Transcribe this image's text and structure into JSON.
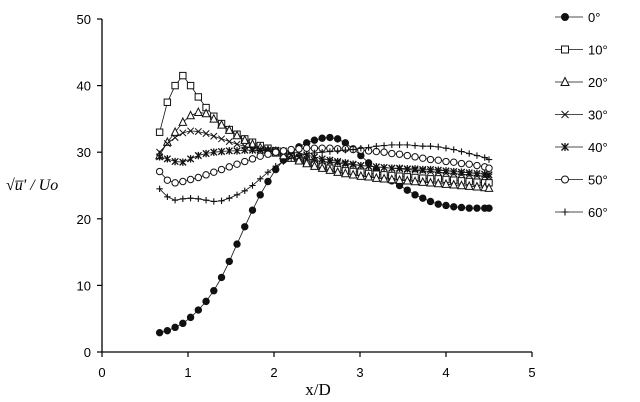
{
  "chart_data": {
    "type": "line",
    "title": "",
    "xlabel": "x/D",
    "ylabel": "√u̅' / Uo",
    "xlim": [
      0,
      5
    ],
    "ylim": [
      0,
      50
    ],
    "xticks": [
      0,
      1,
      2,
      3,
      4,
      5
    ],
    "yticks": [
      0,
      10,
      20,
      30,
      40,
      50
    ],
    "xtick_labels": [
      "0",
      "1",
      "2",
      "3",
      "4",
      "5"
    ],
    "ytick_labels": [
      "0",
      "10",
      "20",
      "30",
      "40",
      "50"
    ],
    "grid": false,
    "legend_position": "right",
    "x": [
      0.67,
      0.76,
      0.85,
      0.94,
      1.03,
      1.12,
      1.21,
      1.3,
      1.39,
      1.48,
      1.57,
      1.66,
      1.75,
      1.84,
      1.93,
      2.02,
      2.11,
      2.2,
      2.29,
      2.38,
      2.47,
      2.56,
      2.65,
      2.74,
      2.83,
      2.92,
      3.01,
      3.1,
      3.19,
      3.28,
      3.37,
      3.46,
      3.55,
      3.64,
      3.73,
      3.82,
      3.91,
      4.0,
      4.09,
      4.18,
      4.27,
      4.36,
      4.45,
      4.5
    ],
    "series": [
      {
        "name": "0°",
        "marker": "filled-circle",
        "values": [
          2.9,
          3.2,
          3.7,
          4.3,
          5.2,
          6.3,
          7.6,
          9.2,
          11.2,
          13.6,
          16.2,
          18.8,
          21.3,
          23.6,
          25.6,
          27.4,
          28.8,
          29.9,
          30.8,
          31.4,
          31.8,
          32.1,
          32.2,
          32.0,
          31.4,
          30.5,
          29.5,
          28.4,
          27.4,
          26.5,
          25.7,
          25.0,
          24.3,
          23.6,
          23.1,
          22.6,
          22.2,
          22.0,
          21.8,
          21.7,
          21.6,
          21.6,
          21.6,
          21.6
        ]
      },
      {
        "name": "10°",
        "marker": "square",
        "values": [
          33.0,
          37.5,
          40.0,
          41.5,
          40.0,
          38.3,
          36.7,
          35.4,
          34.3,
          33.4,
          32.7,
          32.0,
          31.5,
          31.0,
          30.6,
          30.2,
          29.7,
          29.3,
          28.9,
          28.5,
          28.2,
          27.9,
          27.6,
          27.4,
          27.2,
          27.1,
          27.0,
          26.8,
          26.7,
          26.6,
          26.5,
          26.4,
          26.3,
          26.2,
          26.1,
          26.0,
          26.0,
          25.9,
          25.8,
          25.7,
          25.6,
          25.5,
          25.4,
          25.4
        ]
      },
      {
        "name": "20°",
        "marker": "triangle",
        "values": [
          29.5,
          31.5,
          33.0,
          34.5,
          35.5,
          36.0,
          35.8,
          35.0,
          34.1,
          33.3,
          32.5,
          31.8,
          31.2,
          30.7,
          30.3,
          29.9,
          29.5,
          29.1,
          28.7,
          28.3,
          27.9,
          27.6,
          27.3,
          27.0,
          26.8,
          26.6,
          26.4,
          26.3,
          26.1,
          26.0,
          25.9,
          25.8,
          25.7,
          25.6,
          25.5,
          25.4,
          25.3,
          25.2,
          25.1,
          25.0,
          24.9,
          24.8,
          24.7,
          24.6
        ]
      },
      {
        "name": "30°",
        "marker": "x",
        "values": [
          30.0,
          31.3,
          32.2,
          32.9,
          33.2,
          33.1,
          32.8,
          32.4,
          32.0,
          31.6,
          31.2,
          30.9,
          30.6,
          30.4,
          30.2,
          30.0,
          29.8,
          29.6,
          29.3,
          29.0,
          28.8,
          28.6,
          28.5,
          28.4,
          28.2,
          28.1,
          28.0,
          27.9,
          27.8,
          27.7,
          27.6,
          27.5,
          27.4,
          27.3,
          27.2,
          27.1,
          27.0,
          26.9,
          26.8,
          26.7,
          26.6,
          26.5,
          26.4,
          26.3
        ]
      },
      {
        "name": "40°",
        "marker": "asterisk",
        "values": [
          29.3,
          29.0,
          28.6,
          28.5,
          29.0,
          29.5,
          29.8,
          30.0,
          30.1,
          30.2,
          30.2,
          30.3,
          30.3,
          30.3,
          30.3,
          30.3,
          30.2,
          30.1,
          29.9,
          29.6,
          29.3,
          29.0,
          28.8,
          28.6,
          28.4,
          28.2,
          28.0,
          27.9,
          27.8,
          27.7,
          27.6,
          27.6,
          27.5,
          27.5,
          27.4,
          27.4,
          27.3,
          27.2,
          27.1,
          27.0,
          26.9,
          26.8,
          26.7,
          26.6
        ]
      },
      {
        "name": "50°",
        "marker": "circle",
        "values": [
          27.1,
          25.8,
          25.4,
          25.6,
          25.9,
          26.2,
          26.6,
          27.0,
          27.4,
          27.8,
          28.2,
          28.6,
          29.0,
          29.4,
          29.7,
          30.0,
          30.2,
          30.4,
          30.5,
          30.6,
          30.6,
          30.6,
          30.6,
          30.5,
          30.5,
          30.4,
          30.3,
          30.2,
          30.1,
          30.0,
          29.8,
          29.7,
          29.5,
          29.3,
          29.1,
          28.9,
          28.8,
          28.6,
          28.5,
          28.3,
          28.2,
          28.0,
          27.8,
          27.6
        ]
      },
      {
        "name": "60°",
        "marker": "plus",
        "values": [
          24.5,
          23.3,
          22.8,
          23.0,
          23.1,
          23.0,
          22.8,
          22.6,
          22.7,
          23.1,
          23.6,
          24.2,
          25.0,
          26.0,
          27.0,
          27.9,
          28.6,
          29.1,
          29.5,
          29.7,
          29.9,
          30.0,
          30.1,
          30.2,
          30.3,
          30.4,
          30.6,
          30.7,
          30.9,
          31.0,
          31.1,
          31.1,
          31.1,
          31.0,
          30.9,
          30.9,
          30.8,
          30.6,
          30.4,
          30.1,
          29.8,
          29.5,
          29.2,
          28.9
        ]
      }
    ]
  },
  "colors": {
    "series": "#111111",
    "axis": "#000000",
    "background": "#ffffff"
  }
}
